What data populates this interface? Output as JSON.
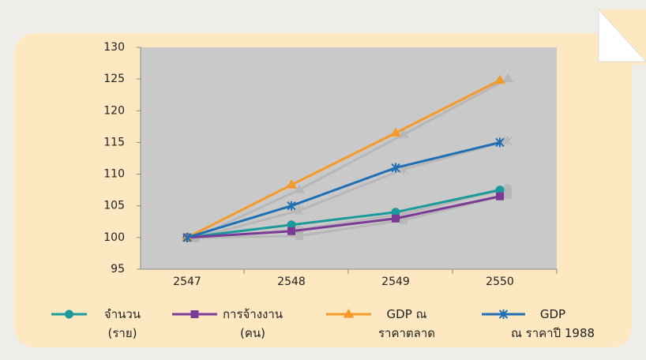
{
  "chart_data": {
    "type": "line",
    "categories": [
      "2547",
      "2548",
      "2549",
      "2550"
    ],
    "series": [
      {
        "name": "จำนวน\n(ราย)",
        "color": "#1a9a9a",
        "marker": "circle",
        "values": [
          100,
          102,
          104,
          107.5
        ]
      },
      {
        "name": "การจ้างงาน\n(คน)",
        "color": "#7b3a96",
        "marker": "square",
        "values": [
          100,
          101,
          103,
          106.5
        ]
      },
      {
        "name": "GDP ณ\nราคาตลาด",
        "color": "#f39a2b",
        "marker": "triangle",
        "values": [
          100,
          108.3,
          116.5,
          124.8
        ]
      },
      {
        "name": "GDP\nณ ราคาปี 1988",
        "color": "#1f6fb5",
        "marker": "asterisk",
        "values": [
          100,
          105,
          111,
          115
        ]
      }
    ],
    "ylim": [
      95,
      130
    ],
    "yticks": [
      95,
      100,
      105,
      110,
      115,
      120,
      125,
      130
    ],
    "grid": false,
    "shadow": true
  }
}
